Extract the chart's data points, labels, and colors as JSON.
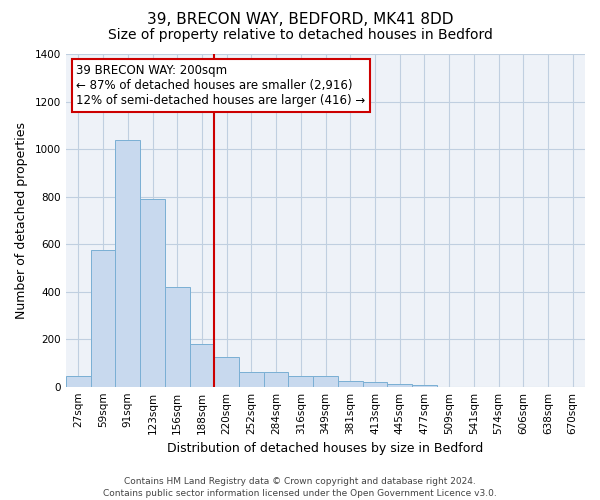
{
  "title": "39, BRECON WAY, BEDFORD, MK41 8DD",
  "subtitle": "Size of property relative to detached houses in Bedford",
  "xlabel": "Distribution of detached houses by size in Bedford",
  "ylabel": "Number of detached properties",
  "categories": [
    "27sqm",
    "59sqm",
    "91sqm",
    "123sqm",
    "156sqm",
    "188sqm",
    "220sqm",
    "252sqm",
    "284sqm",
    "316sqm",
    "349sqm",
    "381sqm",
    "413sqm",
    "445sqm",
    "477sqm",
    "509sqm",
    "541sqm",
    "574sqm",
    "606sqm",
    "638sqm",
    "670sqm"
  ],
  "values": [
    45,
    575,
    1040,
    790,
    420,
    180,
    125,
    62,
    60,
    45,
    45,
    25,
    18,
    10,
    8,
    0,
    0,
    0,
    0,
    0,
    0
  ],
  "bar_color": "#c8d9ee",
  "bar_edge_color": "#7aafd4",
  "vline_x_index": 6,
  "vline_color": "#cc0000",
  "annotation_title": "39 BRECON WAY: 200sqm",
  "annotation_line1": "← 87% of detached houses are smaller (2,916)",
  "annotation_line2": "12% of semi-detached houses are larger (416) →",
  "annotation_box_color": "#ffffff",
  "annotation_box_edge_color": "#cc0000",
  "ylim": [
    0,
    1400
  ],
  "yticks": [
    0,
    200,
    400,
    600,
    800,
    1000,
    1200,
    1400
  ],
  "footer_line1": "Contains HM Land Registry data © Crown copyright and database right 2024.",
  "footer_line2": "Contains public sector information licensed under the Open Government Licence v3.0.",
  "background_color": "#ffffff",
  "plot_bg_color": "#eef2f8",
  "grid_color": "#c0cfe0",
  "title_fontsize": 11,
  "subtitle_fontsize": 10,
  "axis_label_fontsize": 9,
  "tick_fontsize": 7.5,
  "footer_fontsize": 6.5,
  "annotation_fontsize": 8.5
}
